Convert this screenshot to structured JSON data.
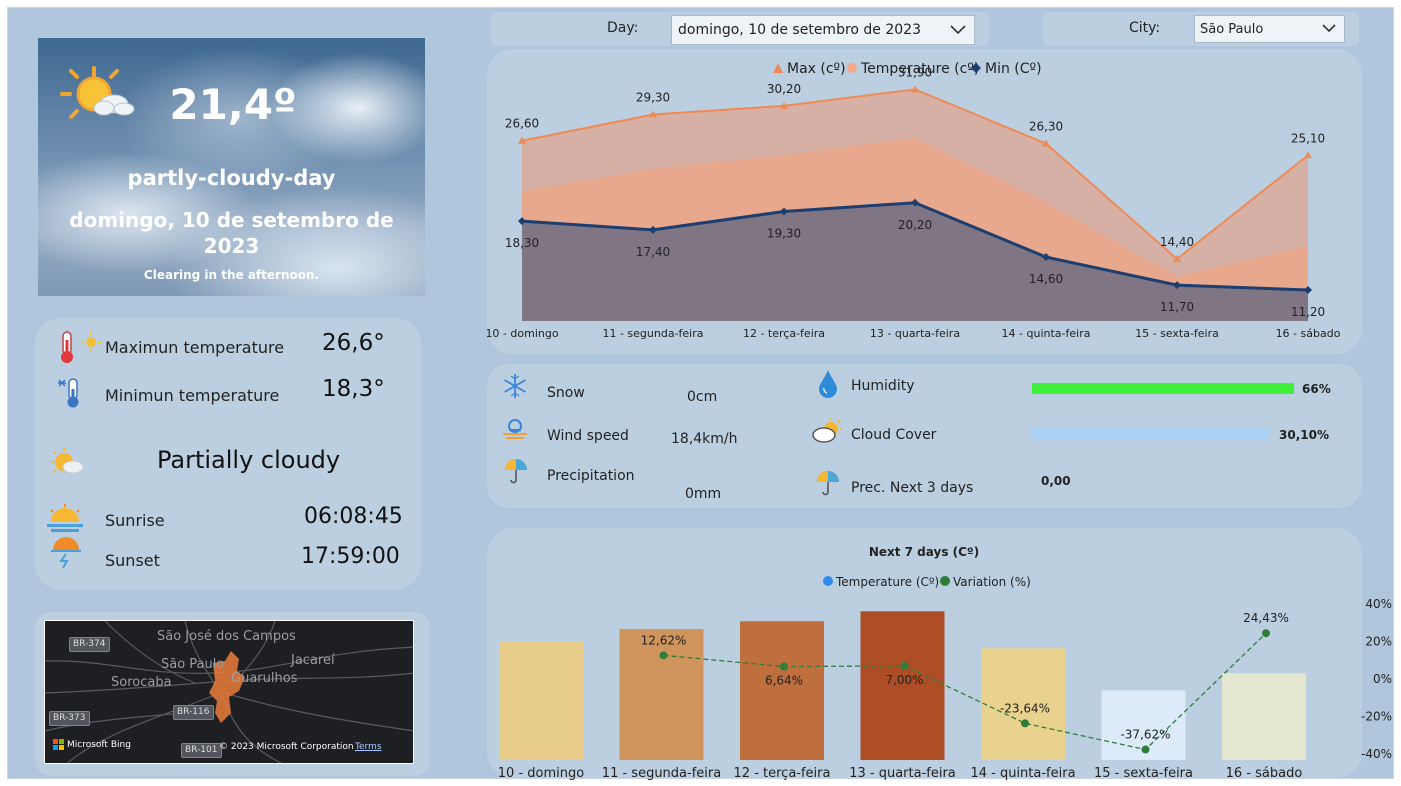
{
  "hero": {
    "temperature": "21,4º",
    "condition": "partly-cloudy-day",
    "date_line1": "domingo, 10 de setembro de",
    "date_line2": "2023",
    "description": "Clearing in the afternoon.",
    "icon": "partly-cloudy-sun-icon"
  },
  "summary": {
    "max_label": "Maximun temperature",
    "max_value": "26,6°",
    "min_label": "Minimun temperature",
    "min_value": "18,3°",
    "condition_text": "Partially cloudy",
    "sunrise_label": "Sunrise",
    "sunrise_value": "06:08:45",
    "sunset_label": "Sunset",
    "sunset_value": "17:59:00"
  },
  "map": {
    "cities": [
      "São José dos Campos",
      "São Paulo",
      "Jacareí",
      "Sorocaba",
      "Guarulhos"
    ],
    "roads": [
      "BR-374",
      "BR-373",
      "BR-116",
      "BR-101"
    ],
    "brand": "Microsoft Bing",
    "copyright": "© 2023 Microsoft Corporation",
    "terms": "Terms"
  },
  "filters": {
    "day_label": "Day:",
    "day_value": "domingo, 10 de setembro de 2023",
    "city_label": "City:",
    "city_value": "São Paulo"
  },
  "metrics": {
    "snow_label": "Snow",
    "snow_value": "0cm",
    "wind_label": "Wind speed",
    "wind_value": "18,4km/h",
    "precip_label": "Precipitation",
    "precip_value": "0mm",
    "humidity_label": "Humidity",
    "humidity_value": "66%",
    "humidity_fraction": 0.66,
    "humidity_color": "#3ef03a",
    "cloud_label": "Cloud Cover",
    "cloud_value": "30,10%",
    "cloud_fraction": 0.301,
    "cloud_color": "#a9d2f5",
    "prec3_label": "Prec. Next 3 days",
    "prec3_value": "0,00"
  },
  "chart_data": [
    {
      "type": "area",
      "legend": [
        "Max (cº)",
        "Temperature (cº)",
        "Min (Cº)"
      ],
      "legend_placement": "top-center",
      "categories": [
        "10 - domingo",
        "11 - segunda-feira",
        "12 - terça-feira",
        "13 - quarta-feira",
        "14 - quinta-feira",
        "15 - sexta-feira",
        "16 - sábado"
      ],
      "series": [
        {
          "name": "Max (cº)",
          "values": [
            26.6,
            29.3,
            30.2,
            31.9,
            26.3,
            14.4,
            25.1
          ],
          "labels": [
            "26,60",
            "29,30",
            "30,20",
            "31,90",
            "26,30",
            "14,40",
            "25,10"
          ],
          "color": "#ee8a55"
        },
        {
          "name": "Temperature (cº)",
          "values": [
            21.4,
            23.7,
            25.1,
            26.9,
            20.2,
            12.6,
            15.7
          ],
          "color": "#f0a888"
        },
        {
          "name": "Min (Cº)",
          "values": [
            18.3,
            17.4,
            19.3,
            20.2,
            14.6,
            11.7,
            11.2
          ],
          "labels": [
            "18,30",
            "17,40",
            "19,30",
            "20,20",
            "14,60",
            "11,70",
            "11,20"
          ],
          "color": "#1d3e70"
        }
      ],
      "ylim": [
        8,
        34
      ],
      "grid": false
    },
    {
      "type": "bar",
      "title": "Next 7 days (Cº)",
      "legend": [
        "Temperature (Cº)",
        "Variation (%)"
      ],
      "legend_placement": "top-center",
      "categories": [
        "10 - domingo",
        "11 - segunda-feira",
        "12 - terça-feira",
        "13 - quarta-feira",
        "14 - quinta-feira",
        "15 - sexta-feira",
        "16 - sábado"
      ],
      "series": [
        {
          "name": "Temperature (Cº)",
          "values": [
            21.4,
            23.7,
            25.1,
            26.9,
            20.2,
            12.6,
            15.7
          ],
          "colors": [
            "#e8cd8a",
            "#cf955c",
            "#bf6e3e",
            "#ad4e26",
            "#e8d28e",
            "#dceafa",
            "#e4e6cf"
          ]
        },
        {
          "name": "Variation (%)",
          "values": [
            null,
            12.62,
            6.64,
            7.0,
            -23.64,
            -37.62,
            24.43
          ],
          "labels": [
            "",
            "12,62%",
            "6,64%",
            "7,00%",
            "-23,64%",
            "-37,62%",
            "24,43%"
          ],
          "color": "#2f7d3a"
        }
      ],
      "y_left_lim": [
        0,
        27.5
      ],
      "y_right_ticks": [
        "40%",
        "20%",
        "0%",
        "-20%",
        "-40%"
      ],
      "y_right_lim": [
        -40,
        40
      ],
      "grid": false
    }
  ]
}
